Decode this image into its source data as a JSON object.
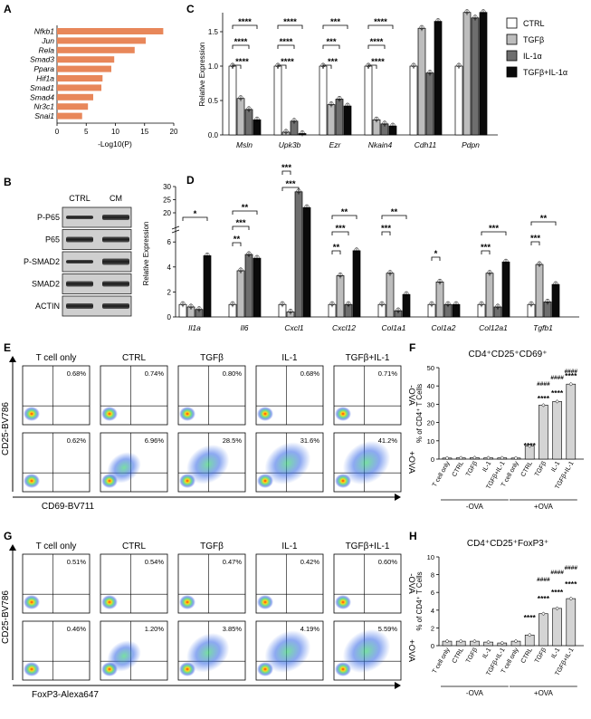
{
  "panels": {
    "A": {
      "letter": "A",
      "xlabel": "-Log10(P)",
      "ticks": [
        "0",
        "5",
        "10",
        "15",
        "20"
      ],
      "bar_color": "#E8875A",
      "genes": [
        "Nfkb1",
        "Jun",
        "Rela",
        "Smad3",
        "Ppara",
        "Hif1a",
        "Smad1",
        "Smad4",
        "Nr3c1",
        "Snai1"
      ],
      "values": [
        18.2,
        15.2,
        13.3,
        9.8,
        9.3,
        7.8,
        7.6,
        6.2,
        5.3,
        4.3
      ]
    },
    "B": {
      "letter": "B",
      "columns": [
        "CTRL",
        "CM"
      ],
      "rows": [
        "P-P65",
        "P65",
        "P-SMAD2",
        "SMAD2",
        "ACTIN"
      ]
    },
    "C": {
      "letter": "C",
      "ylabel": "Relative Expression",
      "yticks": [
        "0.0",
        "0.5",
        "1.0",
        "1.5"
      ],
      "genes": [
        "Msln",
        "Upk3b",
        "Ezr",
        "Nkain4",
        "Cdh11",
        "Pdpn"
      ],
      "stars": [
        "****",
        "****",
        "****",
        "****",
        "****",
        "****",
        "***",
        "***",
        "***",
        "****",
        "****",
        "****"
      ]
    },
    "D": {
      "letter": "D",
      "ylabel": "Relative Expression",
      "yticks": [
        "0",
        "2",
        "4",
        "6",
        "20",
        "25",
        "30"
      ],
      "genes": [
        "Il1a",
        "Il6",
        "Cxcl1",
        "Cxcl12",
        "Col1a1",
        "Col1a2",
        "Col12a1",
        "Tgfb1"
      ],
      "stars": [
        "*",
        "**",
        "***",
        "**",
        "***",
        "***",
        "**",
        "***",
        "**",
        "***",
        "**",
        "*",
        "***",
        "***",
        "***",
        "**"
      ]
    },
    "E": {
      "letter": "E",
      "col_titles": [
        "T cell only",
        "CTRL",
        "TGFβ",
        "IL-1",
        "TGFβ+IL-1"
      ],
      "row_labels": [
        "-OVA",
        "+OVA"
      ],
      "percents_top": [
        "0.68%",
        "0.74%",
        "0.80%",
        "0.68%",
        "0.71%"
      ],
      "percents_bottom": [
        "0.62%",
        "6.96%",
        "28.5%",
        "31.6%",
        "41.2%"
      ],
      "ylabel": "CD25-BV786",
      "xlabel": "CD69-BV711"
    },
    "F": {
      "letter": "F",
      "title": "CD4⁺CD25⁺CD69⁺",
      "ylabel": "% of CD4⁺ T Cells",
      "yticks": [
        "0",
        "10",
        "20",
        "30",
        "40",
        "50"
      ],
      "stars": [
        "****",
        "****",
        "****",
        "****"
      ],
      "hashes": [
        "####",
        "####",
        "####"
      ],
      "group_labels": [
        "-OVA",
        "+OVA"
      ]
    },
    "G": {
      "letter": "G",
      "col_titles": [
        "T cell only",
        "CTRL",
        "TGFβ",
        "IL-1",
        "TGFβ+IL-1"
      ],
      "row_labels": [
        "-OVA",
        "+OVA"
      ],
      "percents_top": [
        "0.51%",
        "0.54%",
        "0.47%",
        "0.42%",
        "0.60%"
      ],
      "percents_bottom": [
        "0.46%",
        "1.20%",
        "3.85%",
        "4.19%",
        "5.59%"
      ],
      "ylabel": "CD25-BV786",
      "xlabel": "FoxP3-Alexa647"
    },
    "H": {
      "letter": "H",
      "title": "CD4⁺CD25⁺FoxP3⁺",
      "ylabel": "% of CD4⁺ T Cells",
      "yticks": [
        "0",
        "2",
        "4",
        "6",
        "8",
        "10"
      ],
      "stars": [
        "****",
        "****",
        "****",
        "****"
      ],
      "hashes": [
        "####",
        "####",
        "####"
      ],
      "group_labels": [
        "-OVA",
        "+OVA"
      ]
    }
  },
  "legend": {
    "items": [
      "CTRL",
      "TGFβ",
      "IL-1α",
      "TGFβ+IL-1α"
    ],
    "colors": [
      "#FFFFFF",
      "#BDBDBD",
      "#6E6E6E",
      "#0A0A0A"
    ]
  },
  "group_conditions": [
    "T cell only",
    "CTRL",
    "TGFβ",
    "IL-1",
    "TGFβ+IL-1"
  ],
  "chart_data": [
    {
      "type": "bar",
      "panel": "A",
      "categories": [
        "Nfkb1",
        "Jun",
        "Rela",
        "Smad3",
        "Ppara",
        "Hif1a",
        "Smad1",
        "Smad4",
        "Nr3c1",
        "Snai1"
      ],
      "values": [
        18.2,
        15.2,
        13.3,
        9.8,
        9.3,
        7.8,
        7.6,
        6.2,
        5.3,
        4.3
      ],
      "xlabel": "-Log10(P)",
      "xlim": [
        0,
        20
      ]
    },
    {
      "type": "bar",
      "panel": "C",
      "categories": [
        "Msln",
        "Upk3b",
        "Ezr",
        "Nkain4",
        "Cdh11",
        "Pdpn"
      ],
      "series": [
        {
          "name": "CTRL",
          "values": [
            1.0,
            1.0,
            1.0,
            1.0,
            1.0,
            1.0
          ]
        },
        {
          "name": "TGFβ",
          "values": [
            0.53,
            0.04,
            0.44,
            0.22,
            1.55,
            1.78
          ]
        },
        {
          "name": "IL-1α",
          "values": [
            0.37,
            0.2,
            0.52,
            0.16,
            0.9,
            1.7
          ]
        },
        {
          "name": "TGFβ+IL-1α",
          "values": [
            0.22,
            0.02,
            0.42,
            0.13,
            1.65,
            1.78
          ]
        }
      ],
      "ylabel": "Relative Expression",
      "ylim": [
        0,
        1.75
      ]
    },
    {
      "type": "bar",
      "panel": "D",
      "categories": [
        "Il1a",
        "Il6",
        "Cxcl1",
        "Cxcl12",
        "Col1a1",
        "Col1a2",
        "Col12a1",
        "Tgfb1"
      ],
      "series": [
        {
          "name": "CTRL",
          "values": [
            1.0,
            1.0,
            1.0,
            1.0,
            1.0,
            1.0,
            1.0,
            1.0
          ]
        },
        {
          "name": "TGFβ",
          "values": [
            0.8,
            3.7,
            0.4,
            3.3,
            3.5,
            2.8,
            3.5,
            4.2
          ]
        },
        {
          "name": "IL-1α",
          "values": [
            0.6,
            5.0,
            28.0,
            1.0,
            0.5,
            1.0,
            0.8,
            1.2
          ]
        },
        {
          "name": "TGFβ+IL-1α",
          "values": [
            4.9,
            4.7,
            22.0,
            5.3,
            1.8,
            1.0,
            4.4,
            2.6
          ]
        }
      ],
      "ylabel": "Relative Expression",
      "ylim": [
        0,
        30
      ]
    },
    {
      "type": "bar",
      "panel": "F",
      "title": "CD4⁺CD25⁺CD69⁺",
      "categories": [
        "T cell only",
        "CTRL",
        "TGFβ",
        "IL-1",
        "TGFβ+IL-1",
        "T cell only",
        "CTRL",
        "TGFβ",
        "IL-1",
        "TGFβ+IL-1"
      ],
      "groups": [
        "-OVA",
        "-OVA",
        "-OVA",
        "-OVA",
        "-OVA",
        "+OVA",
        "+OVA",
        "+OVA",
        "+OVA",
        "+OVA"
      ],
      "values": [
        0.6,
        0.7,
        0.8,
        0.7,
        0.7,
        0.6,
        7.2,
        29.5,
        31.5,
        41.0
      ],
      "ylabel": "% of CD4⁺ T Cells",
      "ylim": [
        0,
        50
      ]
    },
    {
      "type": "bar",
      "panel": "H",
      "title": "CD4⁺CD25⁺FoxP3⁺",
      "categories": [
        "T cell only",
        "CTRL",
        "TGFβ",
        "IL-1",
        "TGFβ+IL-1",
        "T cell only",
        "CTRL",
        "TGFβ",
        "IL-1",
        "TGFβ+IL-1"
      ],
      "groups": [
        "-OVA",
        "-OVA",
        "-OVA",
        "-OVA",
        "-OVA",
        "+OVA",
        "+OVA",
        "+OVA",
        "+OVA",
        "+OVA"
      ],
      "values": [
        0.5,
        0.5,
        0.5,
        0.4,
        0.3,
        0.5,
        1.2,
        3.6,
        4.2,
        5.3
      ],
      "ylabel": "% of CD4⁺ T Cells",
      "ylim": [
        0,
        10
      ]
    }
  ]
}
